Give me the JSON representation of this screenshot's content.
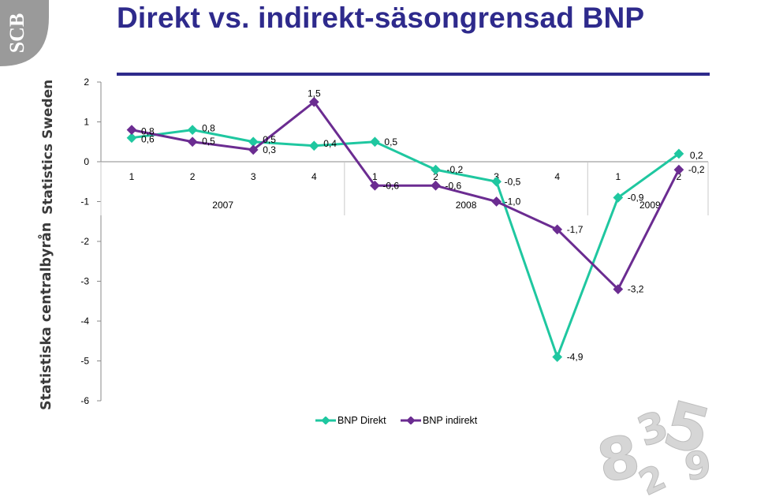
{
  "title": "Direkt vs. indirekt-säsongrensad BNP",
  "side_labels": {
    "top": "Statistics Sweden",
    "bottom": "Statistiska centralbyrån"
  },
  "logo_text": "SCB",
  "chart_data": {
    "type": "line",
    "title": "",
    "xlabel": "",
    "ylabel": "",
    "ylim": [
      -6,
      2
    ],
    "yticks": [
      "2",
      "1",
      "0",
      "-1",
      "-2",
      "-3",
      "-4",
      "-5",
      "-6"
    ],
    "categories": [
      "1",
      "2",
      "3",
      "4",
      "1",
      "2",
      "3",
      "4",
      "1",
      "2"
    ],
    "year_groups": [
      {
        "label": "2007",
        "quarters": 4
      },
      {
        "label": "2008",
        "quarters": 4
      },
      {
        "label": "2009",
        "quarters": 2
      }
    ],
    "series": [
      {
        "name": "BNP Direkt",
        "color": "#1fc7a0",
        "values": [
          0.6,
          0.8,
          0.5,
          0.4,
          0.5,
          -0.2,
          -0.5,
          -4.9,
          -0.9,
          0.2
        ],
        "labels": [
          "0,6",
          "0,8",
          "0,5",
          "0,4",
          "0,5",
          "-0,2",
          "-0,5",
          "-4,9",
          "-0,9",
          "0,2"
        ]
      },
      {
        "name": "BNP indirekt",
        "color": "#6b2c91",
        "values": [
          0.8,
          0.5,
          0.3,
          1.5,
          -0.6,
          -0.6,
          -1.0,
          -1.7,
          -3.2,
          -0.2
        ],
        "labels": [
          "0,8",
          "0,5",
          "0,3",
          "1,5",
          "-0,6",
          "-0,6",
          "-1,0",
          "-1,7",
          "-3,2",
          "-0,2"
        ]
      }
    ],
    "grid": false,
    "legend_position": "bottom"
  }
}
